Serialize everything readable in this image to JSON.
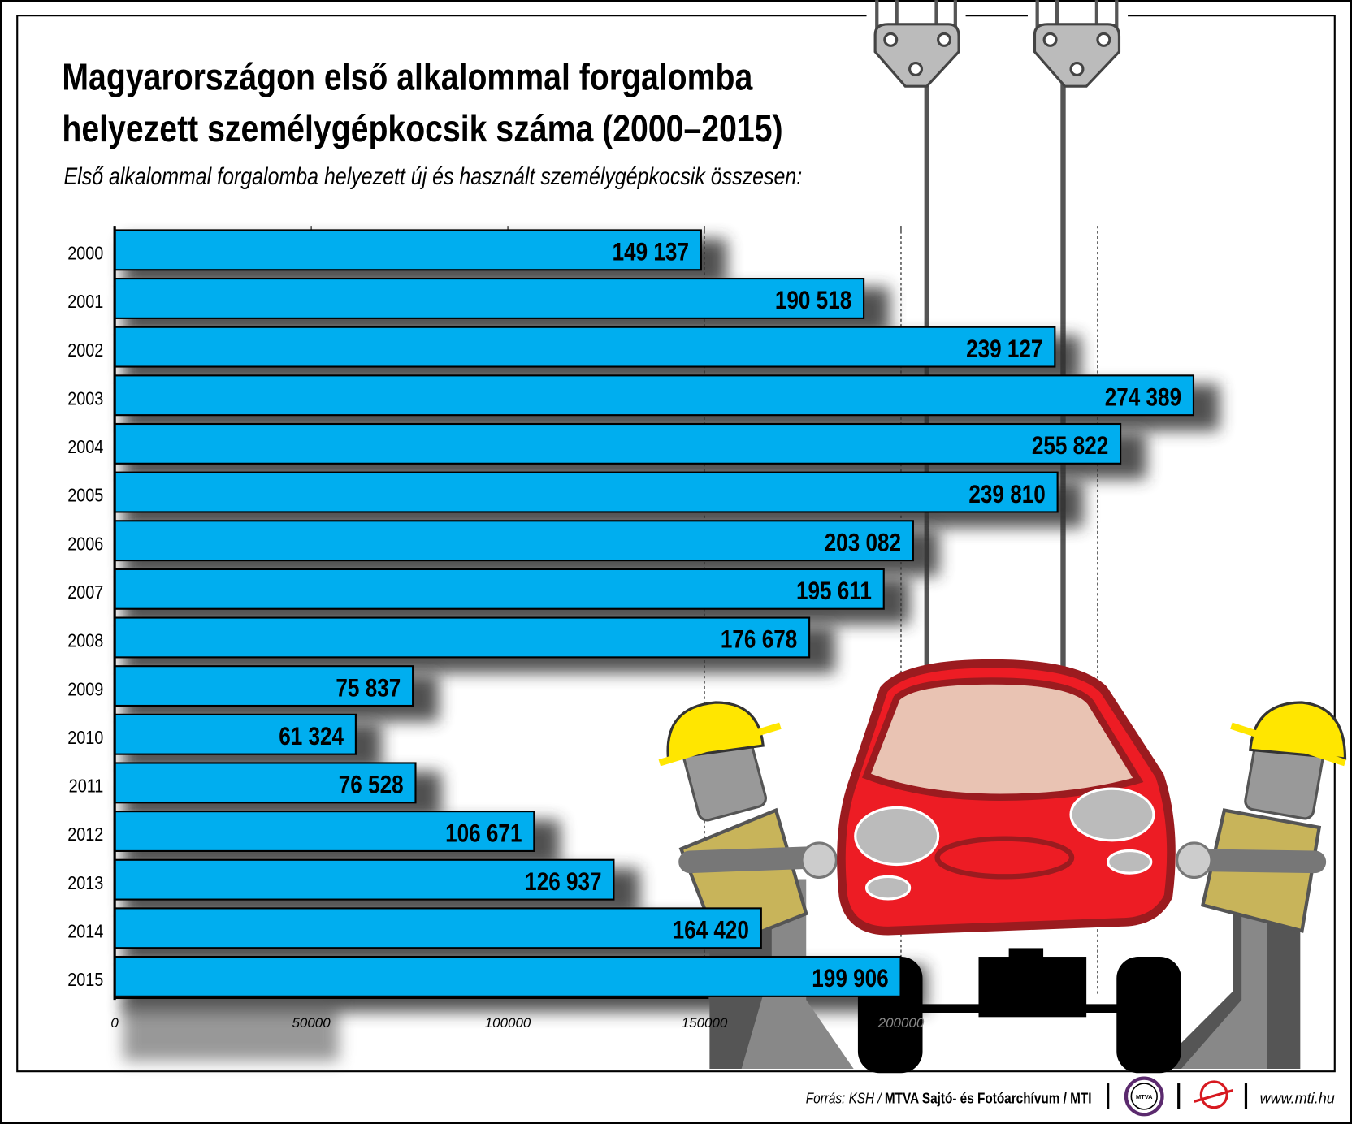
{
  "title_line1": "Magyarországon első alkalommal forgalomba",
  "title_line2": "helyezett személygépkocsik száma (2000–2015)",
  "subtitle": "Első alkalommal forgalomba helyezett új és használt személygépkocsik összesen:",
  "footer": {
    "source_prefix": "Forrás: KSH / ",
    "source_bold": "MTVA Sajtó- és Fotóarchívum / MTI",
    "logo_text": "MTVA",
    "url": "www.mti.hu"
  },
  "colors": {
    "bar": "#00aeef",
    "car": "#ed1c24",
    "helmet": "#ffe600"
  },
  "chart_data": {
    "type": "bar",
    "orientation": "horizontal",
    "categories": [
      "2000",
      "2001",
      "2002",
      "2003",
      "2004",
      "2005",
      "2006",
      "2007",
      "2008",
      "2009",
      "2010",
      "2011",
      "2012",
      "2013",
      "2014",
      "2015"
    ],
    "values": [
      149137,
      190518,
      239127,
      274389,
      255822,
      239810,
      203082,
      195611,
      176678,
      75837,
      61324,
      76528,
      106671,
      126937,
      164420,
      199906
    ],
    "value_labels": [
      "149 137",
      "190 518",
      "239 127",
      "274 389",
      "255 822",
      "239 810",
      "203 082",
      "195 611",
      "176 678",
      "75 837",
      "61 324",
      "76 528",
      "106 671",
      "126 937",
      "164 420",
      "199 906"
    ],
    "x_ticks": [
      "0",
      "50000",
      "100000",
      "150000",
      "200000"
    ],
    "xlim": [
      0,
      250000
    ],
    "grid": true
  }
}
